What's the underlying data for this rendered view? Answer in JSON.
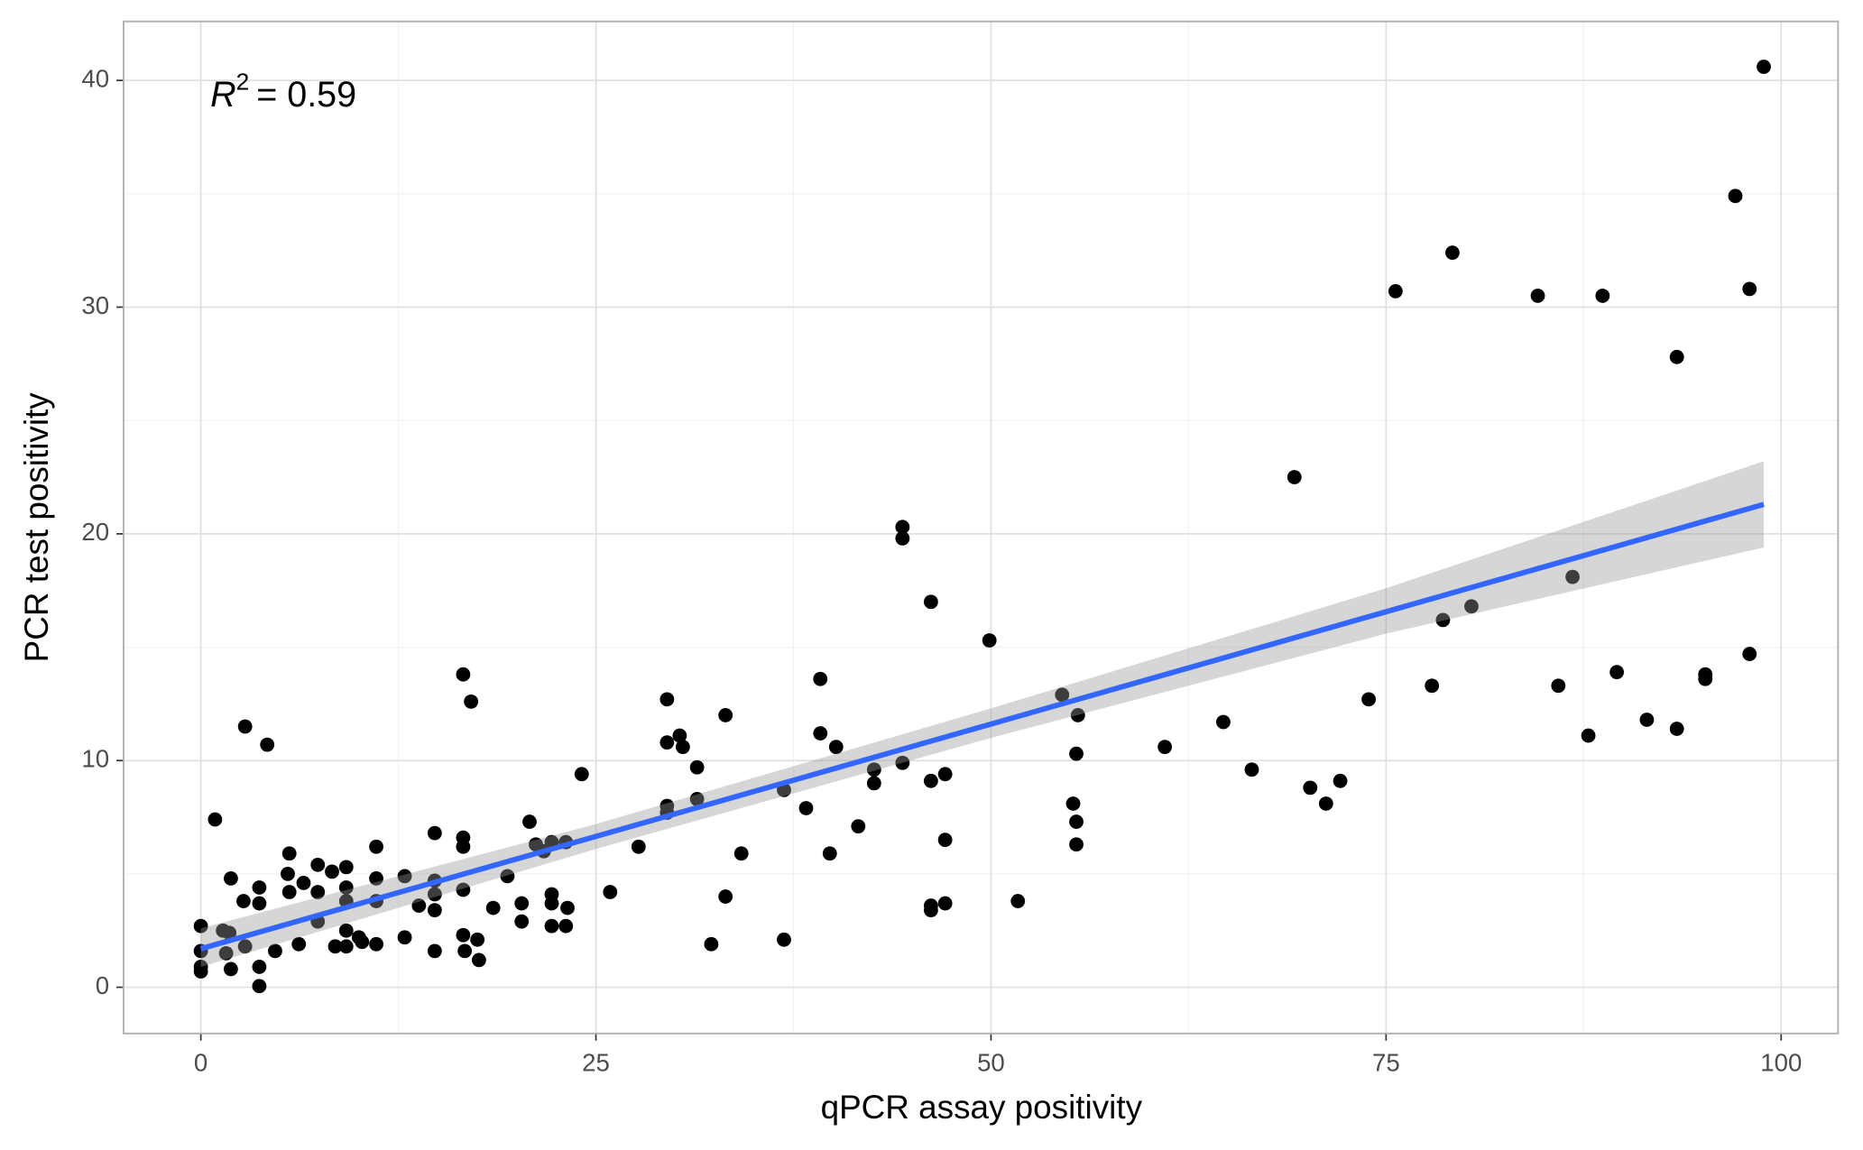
{
  "chart_data": {
    "type": "scatter",
    "x_label": "qPCR assay positivity",
    "y_label": "PCR test positivity",
    "annotation": {
      "symbol": "R",
      "exponent": "2",
      "text": "= 0.59"
    },
    "xlim": [
      -4.89,
      103.6
    ],
    "ylim": [
      -2.04,
      42.6
    ],
    "xticks": [
      0,
      25,
      50,
      75,
      100
    ],
    "yticks": [
      0,
      10,
      20,
      30,
      40
    ],
    "xminor": [
      12.5,
      37.5,
      62.5,
      87.5
    ],
    "yminor": [
      5,
      15,
      25,
      35
    ],
    "grid": true,
    "point_color": "#000000",
    "line_color": "#3366ff",
    "band_color": "#999999",
    "x": [
      0,
      0,
      0,
      0,
      0.9,
      1.4,
      1.8,
      1.6,
      1.9,
      1.9,
      2.8,
      2.7,
      2.8,
      3.7,
      3.7,
      3.7,
      3.7,
      4.2,
      4.7,
      5.6,
      5.5,
      5.6,
      6.2,
      6.5,
      7.4,
      7.4,
      7.4,
      8.3,
      8.5,
      9.2,
      9.2,
      9.2,
      9.2,
      9.2,
      10,
      10.2,
      11.1,
      11.1,
      11.1,
      11.1,
      12.9,
      12.9,
      13.8,
      14.8,
      14.8,
      14.8,
      14.8,
      14.8,
      16.6,
      17.1,
      16.6,
      16.6,
      16.6,
      16.6,
      16.7,
      17.5,
      17.6,
      18.5,
      19.4,
      20.3,
      20.3,
      20.8,
      21.2,
      21.7,
      22.2,
      23.1,
      22.2,
      22.2,
      22.2,
      23.2,
      23.1,
      24.1,
      25.9,
      27.7,
      29.5,
      29.5,
      29.5,
      29.5,
      30.3,
      30.5,
      31.4,
      31.4,
      32.3,
      33.2,
      33.2,
      34.2,
      36.9,
      36.9,
      38.3,
      39.2,
      39.2,
      39.8,
      40.2,
      41.6,
      42.6,
      42.6,
      44.4,
      44.4,
      44.4,
      46.2,
      46.2,
      46.2,
      46.2,
      47.1,
      47.1,
      47.1,
      49.9,
      51.7,
      54.5,
      55.2,
      55.5,
      55.4,
      55.4,
      55.4,
      61,
      64.7,
      66.5,
      69.2,
      70.2,
      71.2,
      72.1,
      73.9,
      75.6,
      77.9,
      78.6,
      79.2,
      80.4,
      84.6,
      85.9,
      86.8,
      87.8,
      88.7,
      89.6,
      91.5,
      93.4,
      93.4,
      95.2,
      95.2,
      97.1,
      98,
      98,
      98.9
    ],
    "y": [
      2.7,
      1.6,
      0.9,
      0.7,
      7.4,
      2.5,
      2.4,
      1.5,
      4.8,
      0.8,
      11.5,
      3.8,
      1.8,
      4.4,
      3.7,
      0.9,
      0.05,
      10.7,
      1.6,
      5.9,
      5.0,
      4.2,
      1.9,
      4.6,
      5.4,
      4.2,
      2.9,
      5.1,
      1.8,
      5.3,
      4.4,
      3.8,
      2.5,
      1.8,
      2.2,
      2.0,
      6.2,
      4.8,
      3.8,
      1.9,
      4.9,
      2.2,
      3.6,
      6.8,
      4.7,
      4.1,
      3.4,
      1.6,
      13.8,
      12.6,
      6.6,
      6.2,
      4.3,
      2.3,
      1.6,
      2.1,
      1.2,
      3.5,
      4.9,
      3.7,
      2.9,
      7.3,
      6.3,
      6.0,
      6.4,
      6.4,
      4.1,
      3.7,
      2.7,
      3.5,
      2.7,
      9.4,
      4.2,
      6.2,
      12.7,
      10.8,
      8.0,
      7.7,
      11.1,
      10.6,
      9.7,
      8.3,
      1.9,
      12.0,
      4.0,
      5.9,
      2.1,
      8.7,
      7.9,
      13.6,
      11.2,
      5.9,
      10.6,
      7.1,
      9.0,
      9.6,
      20.3,
      19.8,
      9.9,
      17.0,
      9.1,
      3.6,
      3.4,
      9.4,
      6.5,
      3.7,
      15.3,
      3.8,
      12.9,
      8.1,
      12.0,
      10.3,
      7.3,
      6.3,
      10.6,
      11.7,
      9.6,
      22.5,
      8.8,
      8.1,
      9.1,
      12.7,
      30.7,
      13.3,
      16.2,
      32.4,
      16.8,
      30.5,
      13.3,
      18.1,
      11.1,
      30.5,
      13.9,
      11.8,
      27.8,
      11.4,
      13.8,
      13.6,
      34.9,
      30.8,
      14.7,
      40.6
    ],
    "fit": {
      "x": [
        0,
        98.9
      ],
      "y": [
        1.7,
        21.3
      ]
    },
    "band": {
      "x": [
        0,
        25,
        50,
        75,
        98.9
      ],
      "lower": [
        0.9,
        6.1,
        11.0,
        15.6,
        19.4
      ],
      "upper": [
        2.6,
        7.2,
        12.3,
        17.6,
        23.2
      ]
    }
  }
}
